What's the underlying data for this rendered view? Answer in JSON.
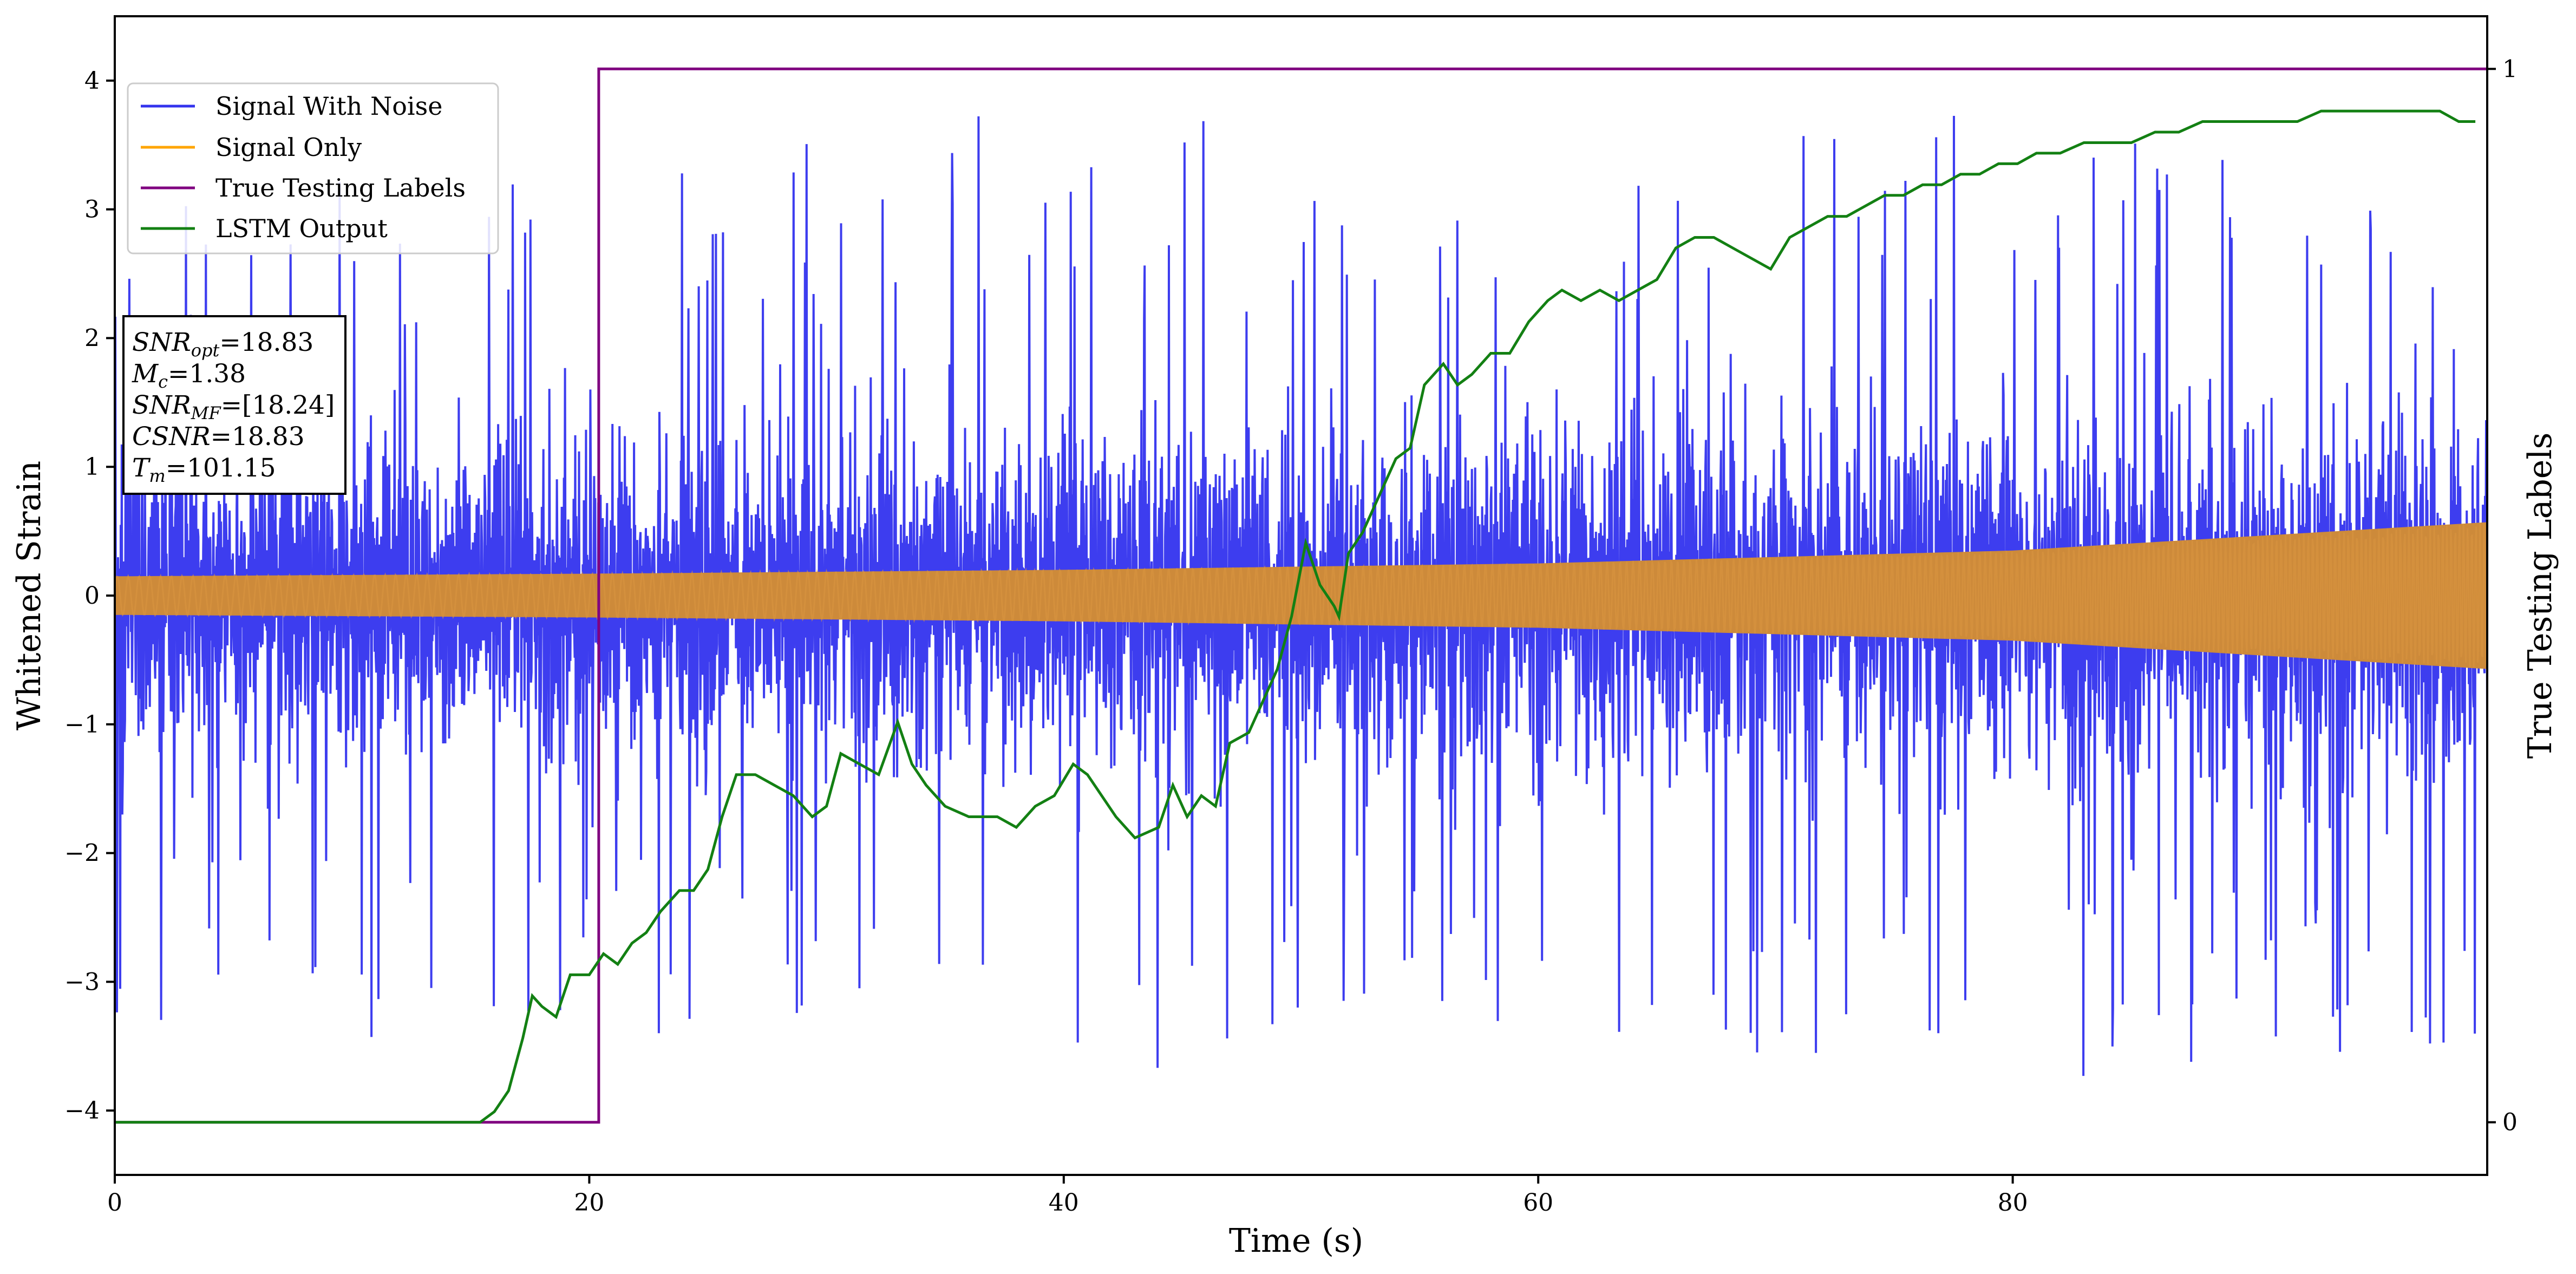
{
  "chart_data": {
    "type": "line",
    "xlabel": "Time (s)",
    "ylabel": "Whitened Strain",
    "y2label": "True Testing Labels",
    "xlim": [
      0,
      100
    ],
    "ylim": [
      -4.5,
      4.5
    ],
    "y2lim": [
      -0.05,
      1.05
    ],
    "x_ticks": [
      0,
      20,
      40,
      60,
      80
    ],
    "x_tick_labels": [
      "0",
      "20",
      "40",
      "60",
      "80"
    ],
    "y_ticks": [
      -4,
      -3,
      -2,
      -1,
      0,
      1,
      2,
      3,
      4
    ],
    "y_tick_labels": [
      "−4",
      "−3",
      "−2",
      "−1",
      "0",
      "1",
      "2",
      "3",
      "4"
    ],
    "y2_ticks": [
      0,
      1
    ],
    "y2_tick_labels": [
      "0",
      "1"
    ],
    "grid": false,
    "legend_position": "top-left",
    "series": [
      {
        "name": "Signal With Noise",
        "color": "#3333ee",
        "axis": "left",
        "style": "dense noisy strain trace",
        "envelope": {
          "x": [
            0,
            20,
            40,
            60,
            80,
            100
          ],
          "typical_max": [
            2.0,
            2.1,
            2.1,
            2.2,
            2.3,
            2.4
          ],
          "typical_min": [
            -2.0,
            -2.1,
            -2.1,
            -2.2,
            -2.3,
            -2.4
          ],
          "peak_max": [
            3.2,
            3.3,
            3.9,
            3.5,
            4.0,
            2.9
          ],
          "peak_min": [
            -3.5,
            -3.4,
            -3.7,
            -3.6,
            -4.05,
            -3.5
          ]
        }
      },
      {
        "name": "Signal Only",
        "color": "#cd8a3a",
        "axis": "left",
        "style": "chirp band",
        "envelope": {
          "x": [
            0,
            20,
            40,
            60,
            80,
            100
          ],
          "amplitude": [
            0.15,
            0.17,
            0.2,
            0.25,
            0.35,
            0.57
          ]
        }
      },
      {
        "name": "True Testing Labels",
        "color": "#800080",
        "axis": "right",
        "points": [
          [
            0,
            0
          ],
          [
            20.4,
            0
          ],
          [
            20.4,
            1
          ],
          [
            100,
            1
          ]
        ]
      },
      {
        "name": "LSTM Output",
        "color": "#138013",
        "axis": "right",
        "points": [
          [
            0,
            0
          ],
          [
            15.4,
            0
          ],
          [
            16.0,
            0.01
          ],
          [
            16.6,
            0.03
          ],
          [
            17.2,
            0.08
          ],
          [
            17.6,
            0.12
          ],
          [
            18.0,
            0.11
          ],
          [
            18.6,
            0.1
          ],
          [
            19.2,
            0.14
          ],
          [
            20.0,
            0.14
          ],
          [
            20.6,
            0.16
          ],
          [
            21.2,
            0.15
          ],
          [
            21.8,
            0.17
          ],
          [
            22.4,
            0.18
          ],
          [
            23.0,
            0.2
          ],
          [
            23.8,
            0.22
          ],
          [
            24.4,
            0.22
          ],
          [
            25.0,
            0.24
          ],
          [
            25.6,
            0.29
          ],
          [
            26.2,
            0.33
          ],
          [
            27.0,
            0.33
          ],
          [
            27.8,
            0.32
          ],
          [
            28.6,
            0.31
          ],
          [
            29.4,
            0.29
          ],
          [
            30.0,
            0.3
          ],
          [
            30.6,
            0.35
          ],
          [
            31.4,
            0.34
          ],
          [
            32.2,
            0.33
          ],
          [
            33.0,
            0.38
          ],
          [
            33.6,
            0.34
          ],
          [
            34.2,
            0.32
          ],
          [
            35.0,
            0.3
          ],
          [
            36.0,
            0.29
          ],
          [
            37.2,
            0.29
          ],
          [
            38.0,
            0.28
          ],
          [
            38.8,
            0.3
          ],
          [
            39.6,
            0.31
          ],
          [
            40.4,
            0.34
          ],
          [
            41.0,
            0.33
          ],
          [
            41.6,
            0.31
          ],
          [
            42.2,
            0.29
          ],
          [
            43.0,
            0.27
          ],
          [
            44.0,
            0.28
          ],
          [
            44.6,
            0.32
          ],
          [
            45.2,
            0.29
          ],
          [
            45.8,
            0.31
          ],
          [
            46.4,
            0.3
          ],
          [
            47.0,
            0.36
          ],
          [
            47.8,
            0.37
          ],
          [
            48.4,
            0.4
          ],
          [
            49.0,
            0.43
          ],
          [
            49.6,
            0.48
          ],
          [
            50.2,
            0.55
          ],
          [
            50.8,
            0.51
          ],
          [
            51.4,
            0.49
          ],
          [
            51.6,
            0.48
          ],
          [
            52.0,
            0.54
          ],
          [
            52.6,
            0.56
          ],
          [
            53.2,
            0.59
          ],
          [
            54.0,
            0.63
          ],
          [
            54.6,
            0.64
          ],
          [
            55.2,
            0.7
          ],
          [
            56.0,
            0.72
          ],
          [
            56.6,
            0.7
          ],
          [
            57.2,
            0.71
          ],
          [
            58.0,
            0.73
          ],
          [
            58.8,
            0.73
          ],
          [
            59.6,
            0.76
          ],
          [
            60.4,
            0.78
          ],
          [
            61.0,
            0.79
          ],
          [
            61.8,
            0.78
          ],
          [
            62.6,
            0.79
          ],
          [
            63.4,
            0.78
          ],
          [
            64.2,
            0.79
          ],
          [
            65.0,
            0.8
          ],
          [
            65.8,
            0.83
          ],
          [
            66.6,
            0.84
          ],
          [
            67.4,
            0.84
          ],
          [
            68.2,
            0.83
          ],
          [
            69.0,
            0.82
          ],
          [
            69.8,
            0.81
          ],
          [
            70.6,
            0.84
          ],
          [
            71.4,
            0.85
          ],
          [
            72.2,
            0.86
          ],
          [
            73.0,
            0.86
          ],
          [
            73.8,
            0.87
          ],
          [
            74.6,
            0.88
          ],
          [
            75.4,
            0.88
          ],
          [
            76.2,
            0.89
          ],
          [
            77.0,
            0.89
          ],
          [
            77.8,
            0.9
          ],
          [
            78.6,
            0.9
          ],
          [
            79.4,
            0.91
          ],
          [
            80.2,
            0.91
          ],
          [
            81.0,
            0.92
          ],
          [
            82.0,
            0.92
          ],
          [
            83.0,
            0.93
          ],
          [
            84.0,
            0.93
          ],
          [
            85.0,
            0.93
          ],
          [
            86.0,
            0.94
          ],
          [
            87.0,
            0.94
          ],
          [
            88.0,
            0.95
          ],
          [
            89.0,
            0.95
          ],
          [
            90.0,
            0.95
          ],
          [
            91.0,
            0.95
          ],
          [
            92.0,
            0.95
          ],
          [
            93.0,
            0.96
          ],
          [
            94.0,
            0.96
          ],
          [
            95.0,
            0.96
          ],
          [
            96.0,
            0.96
          ],
          [
            97.0,
            0.96
          ],
          [
            98.0,
            0.96
          ],
          [
            98.8,
            0.95
          ],
          [
            99.5,
            0.95
          ]
        ]
      }
    ],
    "annotation_lines": [
      {
        "var": "SNR",
        "sub": "opt",
        "text": "=18.83"
      },
      {
        "var": "M",
        "sub": "c",
        "text": "=1.38"
      },
      {
        "var": "SNR",
        "sub": "MF",
        "text": "=[18.24]"
      },
      {
        "var": "CSNR",
        "sub": "",
        "text": "=18.83"
      },
      {
        "var": "T",
        "sub": "m",
        "text": "=101.15"
      }
    ]
  }
}
